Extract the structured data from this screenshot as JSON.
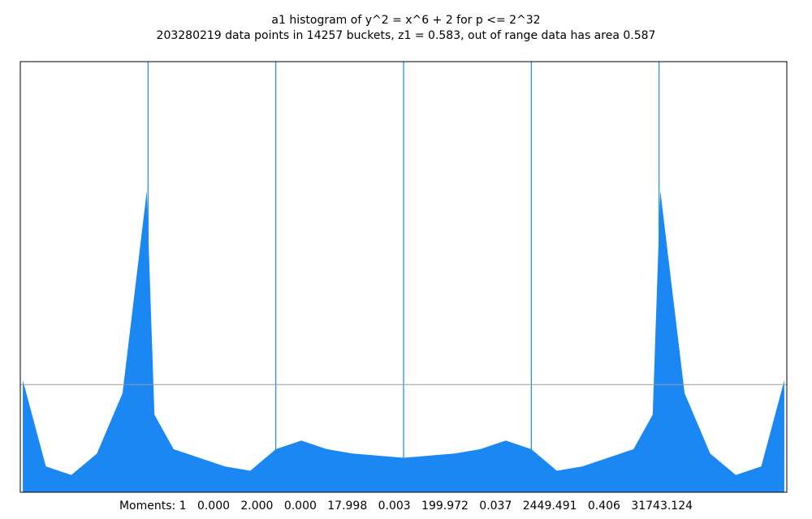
{
  "chart_data": {
    "type": "bar",
    "title": "a1 histogram of y^2 = x^6 + 2 for p <= 2^32",
    "subtitle": "203280219 data points in 14257 buckets, z1 = 0.583, out of range data has area 0.587",
    "xlabel": "",
    "ylabel": "",
    "xlim": [
      -3,
      3
    ],
    "grid": false,
    "reference_line_y": 0.25,
    "colors": {
      "bars": "#1a87f2",
      "line": "#1a87f2",
      "frame": "#000000",
      "reference": "#9a9a9a"
    },
    "x": [
      -2.98,
      -2.8,
      -2.6,
      -2.4,
      -2.2,
      -2.01,
      -1.95,
      -1.8,
      -1.6,
      -1.4,
      -1.2,
      -1.0,
      -0.8,
      -0.6,
      -0.4,
      -0.2,
      0.0,
      0.2,
      0.4,
      0.6,
      0.8,
      1.0,
      1.2,
      1.4,
      1.6,
      1.8,
      1.95,
      2.01,
      2.2,
      2.4,
      2.6,
      2.8,
      2.98
    ],
    "density": [
      0.26,
      0.06,
      0.04,
      0.09,
      0.23,
      0.7,
      0.18,
      0.1,
      0.08,
      0.06,
      0.05,
      0.1,
      0.12,
      0.1,
      0.09,
      0.085,
      0.08,
      0.085,
      0.09,
      0.1,
      0.12,
      0.1,
      0.05,
      0.06,
      0.08,
      0.1,
      0.18,
      0.7,
      0.23,
      0.09,
      0.04,
      0.06,
      0.26
    ],
    "spikes": [
      {
        "x": -2.0,
        "value": 1.0
      },
      {
        "x": -1.0,
        "value": 1.0
      },
      {
        "x": 0.0,
        "value": 1.0
      },
      {
        "x": 1.0,
        "value": 1.0
      },
      {
        "x": 2.0,
        "value": 1.0
      }
    ],
    "moments_label": "Moments:",
    "moments": [
      "1",
      "0.000",
      "2.000",
      "0.000",
      "17.998",
      "0.003",
      "199.972",
      "0.037",
      "2449.491",
      "0.406",
      "31743.124"
    ]
  }
}
